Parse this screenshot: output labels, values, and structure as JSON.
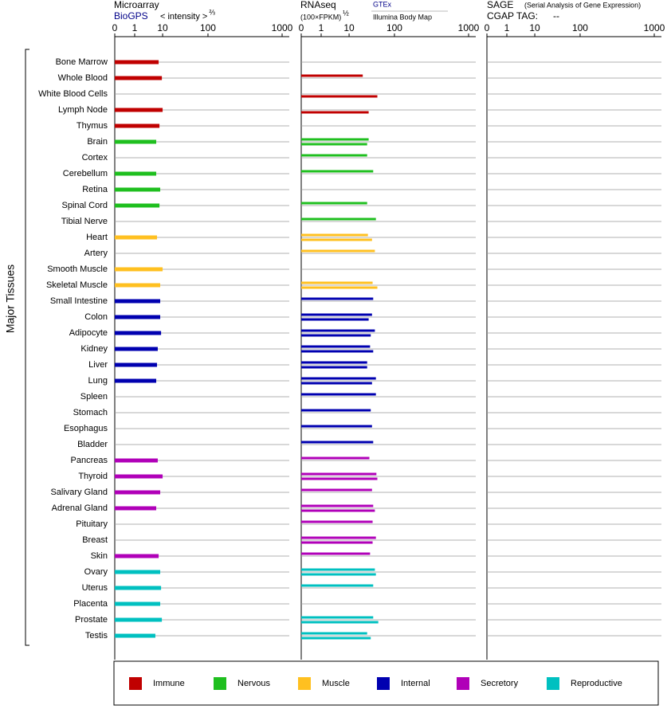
{
  "chart_data": {
    "type": "bar",
    "orientation": "horizontal",
    "y_label": "Major Tissues",
    "groups": [
      {
        "name": "Immune",
        "color": "#c00000",
        "categories": [
          "Bone Marrow",
          "Whole Blood",
          "White Blood Cells",
          "Lymph Node",
          "Thymus"
        ]
      },
      {
        "name": "Nervous",
        "color": "#1fbf1f",
        "categories": [
          "Brain",
          "Cortex",
          "Cerebellum",
          "Retina",
          "Spinal Cord",
          "Tibial Nerve"
        ]
      },
      {
        "name": "Muscle",
        "color": "#ffc020",
        "categories": [
          "Heart",
          "Artery",
          "Smooth Muscle",
          "Skeletal Muscle"
        ]
      },
      {
        "name": "Internal",
        "color": "#0000b0",
        "categories": [
          "Small Intestine",
          "Colon",
          "Adipocyte",
          "Kidney",
          "Liver",
          "Lung",
          "Spleen",
          "Stomach",
          "Esophagus",
          "Bladder"
        ]
      },
      {
        "name": "Secretory",
        "color": "#b000b8",
        "categories": [
          "Pancreas",
          "Thyroid",
          "Salivary Gland",
          "Adrenal Gland",
          "Pituitary",
          "Breast",
          "Skin"
        ]
      },
      {
        "name": "Reproductive",
        "color": "#00c0c0",
        "categories": [
          "Ovary",
          "Uterus",
          "Placenta",
          "Prostate",
          "Testis"
        ]
      }
    ],
    "panels": [
      {
        "title": "Microarray",
        "scale_label": "< intensity >",
        "scale_exponent": "⅔",
        "xlim": [
          0,
          1000
        ],
        "xticks": [
          0,
          1,
          10,
          100,
          1000
        ],
        "series": [
          {
            "name": "BioGPS",
            "values": [
              7.2,
              9.4,
              null,
              10,
              7.7,
              5.9,
              null,
              5.9,
              8.2,
              7.7,
              null,
              6.3,
              null,
              10,
              8.2,
              8.2,
              8.2,
              8.8,
              6.7,
              6.3,
              5.9,
              null,
              null,
              null,
              null,
              6.7,
              10,
              8.2,
              5.9,
              null,
              null,
              7.2,
              8.2,
              8.8,
              8.2,
              9.4,
              5.5
            ]
          }
        ]
      },
      {
        "title": "RNAseq",
        "scale_label": "(100×FPKM)",
        "scale_exponent": "½",
        "xlim": [
          0,
          1000
        ],
        "xticks": [
          0,
          1,
          10,
          100,
          1000
        ],
        "series": [
          {
            "name": "GTEx",
            "values": [
              null,
              20,
              null,
              null,
              null,
              27,
              25,
              34,
              null,
              25,
              39,
              26,
              37,
              null,
              33,
              34,
              32,
              37,
              29,
              25,
              39,
              39,
              30,
              32,
              34,
              28,
              40,
              32,
              34,
              33,
              39,
              29,
              37,
              34,
              null,
              34,
              25
            ]
          },
          {
            "name": "Illumina Body Map",
            "values": [
              null,
              null,
              42,
              27,
              null,
              25,
              null,
              null,
              null,
              null,
              null,
              32,
              null,
              null,
              42,
              null,
              27,
              30,
              34,
              25,
              32,
              null,
              null,
              null,
              null,
              null,
              42,
              null,
              37,
              null,
              33,
              null,
              39,
              null,
              null,
              44,
              30
            ]
          }
        ]
      },
      {
        "title": "SAGE",
        "subtitle": "(Serial Analysis of Gene Expression)",
        "tag_label": "CGAP TAG:",
        "tag_value": "--",
        "xlim": [
          0,
          1000
        ],
        "xticks": [
          0,
          1,
          10,
          100,
          1000
        ],
        "series": []
      }
    ]
  }
}
